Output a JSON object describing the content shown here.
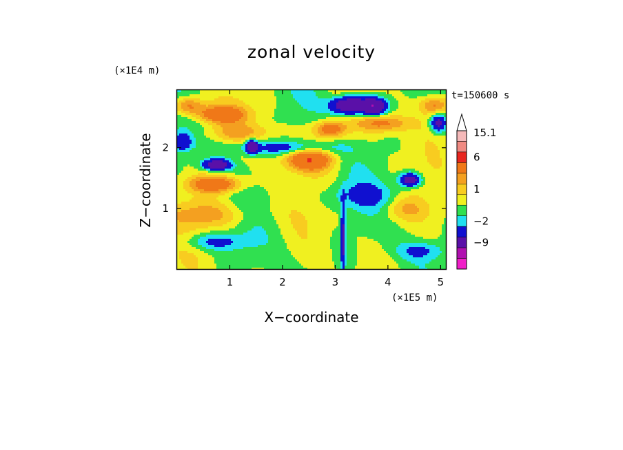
{
  "chart_data": {
    "type": "heatmap",
    "title": "zonal velocity",
    "xlabel": "X−coordinate",
    "ylabel": "Z−coordinate",
    "x_scale_note": "(×1E5 m)",
    "y_scale_note": "(×1E4 m)",
    "time_label": "t=150600 s",
    "xlim": [
      0,
      5.1
    ],
    "ylim": [
      0,
      2.95
    ],
    "x_ticks": [
      1,
      2,
      3,
      4,
      5
    ],
    "y_ticks": [
      1,
      2
    ],
    "colorbar": {
      "levels": [
        {
          "lower": 12,
          "color": "#f5b9b9"
        },
        {
          "lower": 9,
          "color": "#f08a82"
        },
        {
          "lower": 6,
          "color": "#e8261f"
        },
        {
          "lower": 3,
          "color": "#f07818"
        },
        {
          "lower": 2,
          "color": "#f4a020"
        },
        {
          "lower": 1,
          "color": "#f8cc20"
        },
        {
          "lower": 0,
          "color": "#f0f020"
        },
        {
          "lower": -1,
          "color": "#30e050"
        },
        {
          "lower": -2,
          "color": "#20e0f0"
        },
        {
          "lower": -4,
          "color": "#1010d0"
        },
        {
          "lower": -9,
          "color": "#5a10a8"
        },
        {
          "lower": -12,
          "color": "#b010b0"
        },
        {
          "lower": -15,
          "color": "#f020c8"
        }
      ],
      "labels": [
        "15.1",
        "6",
        "1",
        "−2",
        "−9"
      ],
      "max_extension": true
    },
    "field_features": [
      {
        "x": 0.8,
        "z": 2.55,
        "sx": 0.35,
        "sz": 0.1,
        "amp": 4.5
      },
      {
        "x": 0.2,
        "z": 2.7,
        "sx": 0.2,
        "sz": 0.1,
        "amp": 4.0
      },
      {
        "x": 0.75,
        "z": 1.4,
        "sx": 0.35,
        "sz": 0.1,
        "amp": 5.0
      },
      {
        "x": 0.6,
        "z": 0.9,
        "sx": 0.6,
        "sz": 0.15,
        "amp": 2.2
      },
      {
        "x": 2.5,
        "z": 1.8,
        "sx": 0.3,
        "sz": 0.12,
        "amp": 5.5
      },
      {
        "x": 2.9,
        "z": 2.3,
        "sx": 0.22,
        "sz": 0.1,
        "amp": 4.5
      },
      {
        "x": 3.9,
        "z": 2.4,
        "sx": 0.35,
        "sz": 0.1,
        "amp": 3.5
      },
      {
        "x": 4.9,
        "z": 2.7,
        "sx": 0.2,
        "sz": 0.1,
        "amp": 3.5
      },
      {
        "x": 4.3,
        "z": 1.0,
        "sx": 0.3,
        "sz": 0.15,
        "amp": 2.0
      },
      {
        "x": 1.2,
        "z": 2.25,
        "sx": 0.5,
        "sz": 0.1,
        "amp": 1.8
      },
      {
        "x": 3.3,
        "z": 2.7,
        "sx": 0.25,
        "sz": 0.1,
        "amp": -8.5
      },
      {
        "x": 3.75,
        "z": 2.68,
        "sx": 0.15,
        "sz": 0.09,
        "amp": -7.5
      },
      {
        "x": 0.75,
        "z": 1.72,
        "sx": 0.18,
        "sz": 0.06,
        "amp": -6.5
      },
      {
        "x": 1.42,
        "z": 2.02,
        "sx": 0.08,
        "sz": 0.08,
        "amp": -6.0
      },
      {
        "x": 4.42,
        "z": 1.47,
        "sx": 0.14,
        "sz": 0.08,
        "amp": -6.5
      },
      {
        "x": 4.95,
        "z": 2.4,
        "sx": 0.1,
        "sz": 0.1,
        "amp": -5.0
      },
      {
        "x": 0.1,
        "z": 2.1,
        "sx": 0.12,
        "sz": 0.1,
        "amp": -3.5
      },
      {
        "x": 3.15,
        "z": 0.5,
        "sx": 0.03,
        "sz": 0.4,
        "amp": -5.0
      },
      {
        "x": 2.0,
        "z": 2.0,
        "sx": 0.7,
        "sz": 0.08,
        "amp": -2.8
      },
      {
        "x": 0.7,
        "z": 0.45,
        "sx": 0.4,
        "sz": 0.1,
        "amp": -2.6
      },
      {
        "x": 3.5,
        "z": 1.2,
        "sx": 0.6,
        "sz": 0.15,
        "amp": -1.8
      },
      {
        "x": 4.6,
        "z": 0.3,
        "sx": 0.3,
        "sz": 0.1,
        "amp": -2.2
      }
    ]
  }
}
